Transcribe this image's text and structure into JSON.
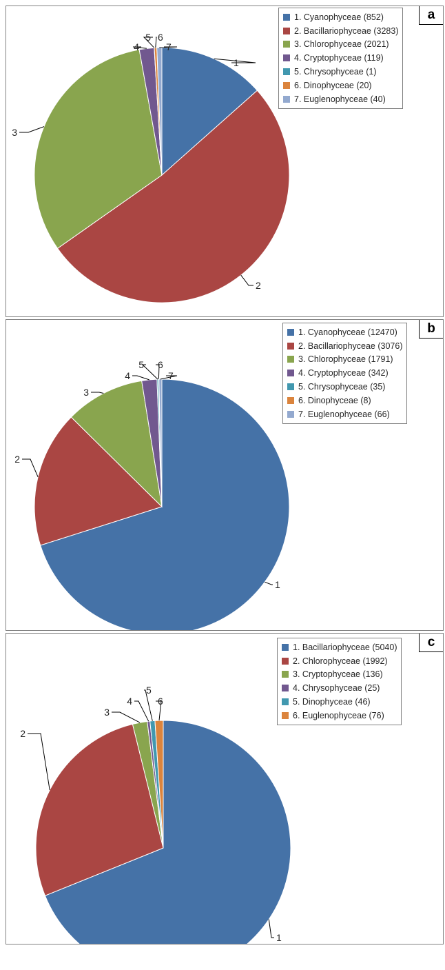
{
  "chart_data": [
    {
      "type": "pie",
      "panel": "a",
      "legend_placement": "top-right",
      "slices": [
        {
          "label": "1",
          "name": "Cyanophyceae",
          "value": 852,
          "legend": "1. Cyanophyceae (852)",
          "color": "#4572A7"
        },
        {
          "label": "2",
          "name": "Bacillariophyceae",
          "value": 3283,
          "legend": "2. Bacillariophyceae (3283)",
          "color": "#AA4643"
        },
        {
          "label": "3",
          "name": "Chlorophyceae",
          "value": 2021,
          "legend": "3. Chlorophyceae (2021)",
          "color": "#89A54E"
        },
        {
          "label": "4",
          "name": "Cryptophyceae",
          "value": 119,
          "legend": "4. Cryptophyceae (119)",
          "color": "#71588F"
        },
        {
          "label": "5",
          "name": "Chrysophyceae",
          "value": 1,
          "legend": "5. Chrysophyceae (1)",
          "color": "#4198AF"
        },
        {
          "label": "6",
          "name": "Dinophyceae",
          "value": 20,
          "legend": "6. Dinophyceae (20)",
          "color": "#DB843D"
        },
        {
          "label": "7",
          "name": "Euglenophyceae",
          "value": 40,
          "legend": "7. Euglenophyceae (40)",
          "color": "#93A9CF"
        }
      ]
    },
    {
      "type": "pie",
      "panel": "b",
      "legend_placement": "top-right",
      "slices": [
        {
          "label": "1",
          "name": "Cyanophyceae",
          "value": 12470,
          "legend": "1. Cyanophyceae (12470)",
          "color": "#4572A7"
        },
        {
          "label": "2",
          "name": "Bacillariophyceae",
          "value": 3076,
          "legend": "2. Bacillariophyceae (3076)",
          "color": "#AA4643"
        },
        {
          "label": "3",
          "name": "Chlorophyceae",
          "value": 1791,
          "legend": "3. Chlorophyceae (1791)",
          "color": "#89A54E"
        },
        {
          "label": "4",
          "name": "Cryptophyceae",
          "value": 342,
          "legend": "4. Cryptophyceae (342)",
          "color": "#71588F"
        },
        {
          "label": "5",
          "name": "Chrysophyceae",
          "value": 35,
          "legend": "5. Chrysophyceae (35)",
          "color": "#4198AF"
        },
        {
          "label": "6",
          "name": "Dinophyceae",
          "value": 8,
          "legend": "6. Dinophyceae (8)",
          "color": "#DB843D"
        },
        {
          "label": "7",
          "name": "Euglenophyceae",
          "value": 66,
          "legend": "7. Euglenophyceae (66)",
          "color": "#93A9CF"
        }
      ]
    },
    {
      "type": "pie",
      "panel": "c",
      "legend_placement": "top-right",
      "slices": [
        {
          "label": "1",
          "name": "Bacillariophyceae",
          "value": 5040,
          "legend": "1. Bacillariophyceae (5040)",
          "color": "#4572A7"
        },
        {
          "label": "2",
          "name": "Chlorophyceae",
          "value": 1992,
          "legend": "2. Chlorophyceae (1992)",
          "color": "#AA4643"
        },
        {
          "label": "3",
          "name": "Cryptophyceae",
          "value": 136,
          "legend": "3. Cryptophyceae (136)",
          "color": "#89A54E"
        },
        {
          "label": "4",
          "name": "Chrysophyceae",
          "value": 25,
          "legend": "4. Chrysophyceae (25)",
          "color": "#71588F"
        },
        {
          "label": "5",
          "name": "Dinophyceae",
          "value": 46,
          "legend": "5. Dinophyceae (46)",
          "color": "#4198AF"
        },
        {
          "label": "6",
          "name": "Euglenophyceae",
          "value": 76,
          "legend": "6. Euglenophyceae (76)",
          "color": "#DB843D"
        }
      ]
    }
  ]
}
